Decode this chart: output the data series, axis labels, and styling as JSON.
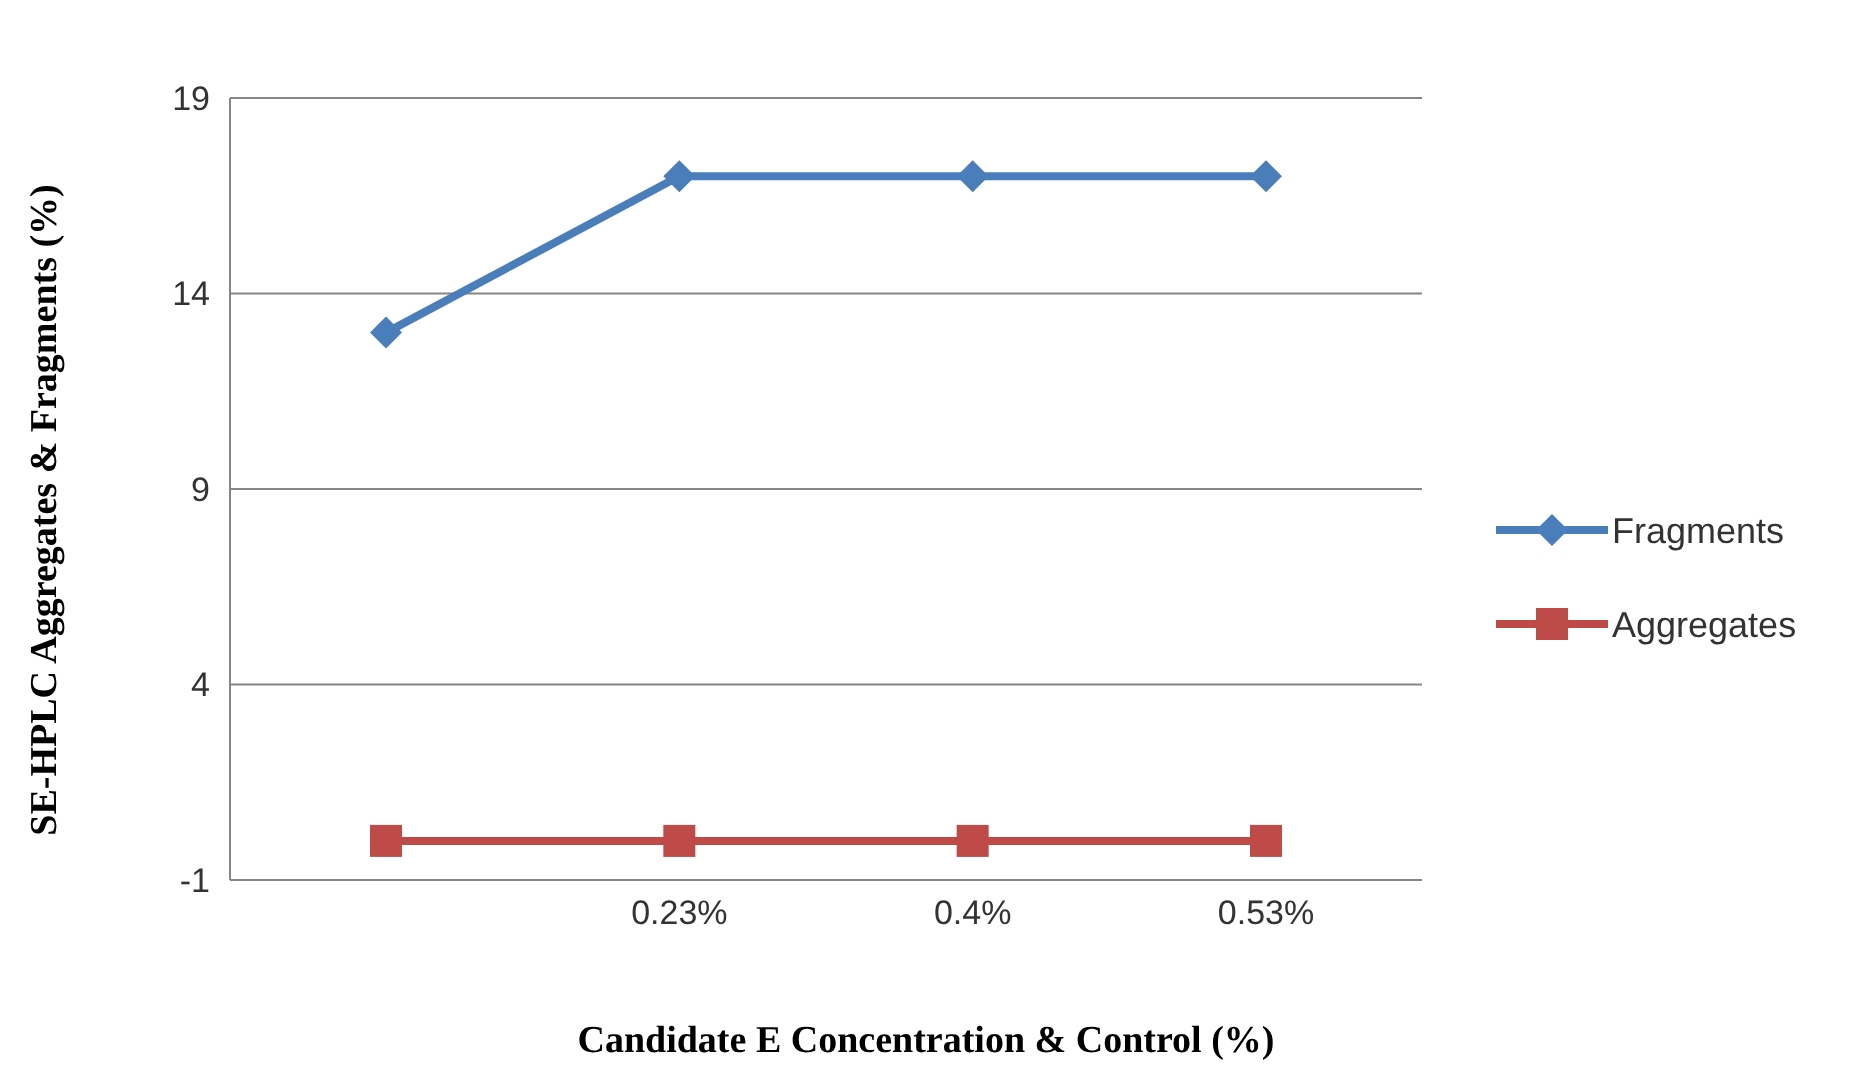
{
  "chart_data": {
    "type": "line",
    "xlabel": "Candidate E Concentration & Control (%)",
    "ylabel": "SE-HPLC Aggregates & Fragments (%)",
    "categories": [
      null,
      "0.23%",
      "0.4%",
      "0.53%"
    ],
    "series": [
      {
        "name": "Fragments",
        "color": "#4a7ebb",
        "marker": "diamond",
        "values": [
          13,
          17,
          17,
          17
        ]
      },
      {
        "name": "Aggregates",
        "color": "#be4b48",
        "marker": "square",
        "values": [
          0,
          0,
          0,
          0
        ]
      }
    ],
    "ylim": [
      -1,
      19
    ],
    "yticks": [
      -1,
      4,
      9,
      14,
      19
    ],
    "grid": "y",
    "legend": "right",
    "line_style": "solid"
  }
}
